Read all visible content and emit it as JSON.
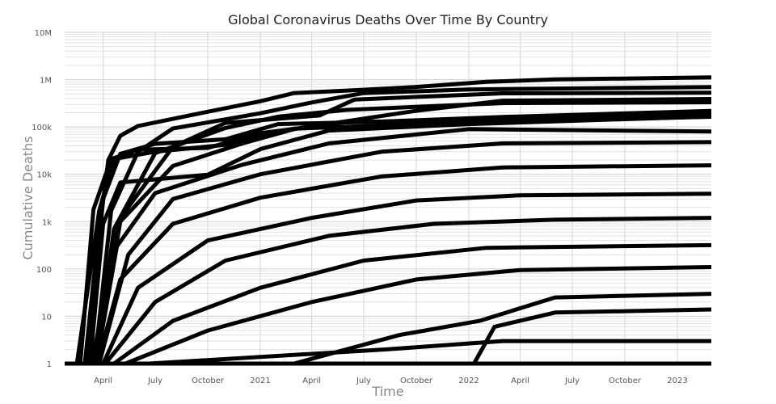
{
  "chart_data": {
    "type": "line",
    "title": "Global Coronavirus Deaths Over Time By Country",
    "xlabel": "Time",
    "ylabel": "Cumulative Deaths",
    "yscale": "log",
    "ylim": [
      1,
      10000000
    ],
    "xlim": [
      "2020-01-22",
      "2023-03-09"
    ],
    "grid": true,
    "legend": "none",
    "line_color": "#000000",
    "y_ticks": [
      {
        "value": 1,
        "label": "1"
      },
      {
        "value": 10,
        "label": "10"
      },
      {
        "value": 100,
        "label": "100"
      },
      {
        "value": 1000,
        "label": "1k"
      },
      {
        "value": 10000,
        "label": "10k"
      },
      {
        "value": 100000,
        "label": "100k"
      },
      {
        "value": 1000000,
        "label": "1M"
      },
      {
        "value": 10000000,
        "label": "10M"
      }
    ],
    "x_ticks": [
      {
        "date": "2020-04-01",
        "label": "April"
      },
      {
        "date": "2020-07-01",
        "label": "July"
      },
      {
        "date": "2020-10-01",
        "label": "October"
      },
      {
        "date": "2021-01-01",
        "label": "2021"
      },
      {
        "date": "2021-04-01",
        "label": "April"
      },
      {
        "date": "2021-07-01",
        "label": "July"
      },
      {
        "date": "2021-10-01",
        "label": "October"
      },
      {
        "date": "2022-01-01",
        "label": "2022"
      },
      {
        "date": "2022-04-01",
        "label": "April"
      },
      {
        "date": "2022-07-01",
        "label": "July"
      },
      {
        "date": "2022-10-01",
        "label": "October"
      },
      {
        "date": "2023-01-01",
        "label": "2023"
      }
    ],
    "series": [
      {
        "points": [
          [
            "2020-02-29",
            1
          ],
          [
            "2020-03-20",
            200
          ],
          [
            "2020-04-10",
            20000
          ],
          [
            "2020-05-01",
            65000
          ],
          [
            "2020-06-01",
            105000
          ],
          [
            "2020-10-01",
            210000
          ],
          [
            "2021-01-01",
            350000
          ],
          [
            "2021-03-01",
            520000
          ],
          [
            "2021-07-01",
            610000
          ],
          [
            "2021-10-01",
            700000
          ],
          [
            "2022-02-01",
            900000
          ],
          [
            "2022-06-01",
            1010000
          ],
          [
            "2023-03-09",
            1120000
          ]
        ]
      },
      {
        "points": [
          [
            "2020-03-17",
            1
          ],
          [
            "2020-04-15",
            1700
          ],
          [
            "2020-06-01",
            30000
          ],
          [
            "2020-08-01",
            93000
          ],
          [
            "2021-01-01",
            195000
          ],
          [
            "2021-04-01",
            330000
          ],
          [
            "2021-07-01",
            520000
          ],
          [
            "2022-01-01",
            620000
          ],
          [
            "2023-03-09",
            699000
          ]
        ]
      },
      {
        "points": [
          [
            "2020-03-12",
            1
          ],
          [
            "2020-05-01",
            1200
          ],
          [
            "2020-08-01",
            38000
          ],
          [
            "2020-11-01",
            122000
          ],
          [
            "2021-04-15",
            175000
          ],
          [
            "2021-06-15",
            380000
          ],
          [
            "2022-03-01",
            515000
          ],
          [
            "2023-03-09",
            531000
          ]
        ]
      },
      {
        "points": [
          [
            "2020-03-20",
            1
          ],
          [
            "2020-05-01",
            1000
          ],
          [
            "2020-08-01",
            15000
          ],
          [
            "2020-12-01",
            45000
          ],
          [
            "2021-03-01",
            90000
          ],
          [
            "2021-10-01",
            220000
          ],
          [
            "2022-03-01",
            360000
          ],
          [
            "2023-03-09",
            390000
          ]
        ]
      },
      {
        "points": [
          [
            "2020-03-19",
            1
          ],
          [
            "2020-04-20",
            700
          ],
          [
            "2020-07-01",
            28000
          ],
          [
            "2020-11-01",
            95000
          ],
          [
            "2021-02-01",
            165000
          ],
          [
            "2021-06-01",
            230000
          ],
          [
            "2022-03-01",
            320000
          ],
          [
            "2023-03-09",
            333000
          ]
        ]
      },
      {
        "points": [
          [
            "2020-03-05",
            1
          ],
          [
            "2020-04-01",
            3000
          ],
          [
            "2020-05-01",
            27000
          ],
          [
            "2020-07-01",
            44000
          ],
          [
            "2020-11-01",
            55000
          ],
          [
            "2021-02-01",
            115000
          ],
          [
            "2021-08-01",
            130000
          ],
          [
            "2022-03-01",
            163000
          ],
          [
            "2023-03-09",
            220000
          ]
        ]
      },
      {
        "points": [
          [
            "2020-02-21",
            1
          ],
          [
            "2020-03-15",
            1800
          ],
          [
            "2020-04-15",
            21000
          ],
          [
            "2020-06-01",
            33000
          ],
          [
            "2020-10-01",
            36000
          ],
          [
            "2021-01-01",
            74000
          ],
          [
            "2021-06-01",
            127000
          ],
          [
            "2022-01-01",
            140000
          ],
          [
            "2023-03-09",
            188000
          ]
        ]
      },
      {
        "points": [
          [
            "2020-03-09",
            1
          ],
          [
            "2020-04-01",
            900
          ],
          [
            "2020-05-01",
            6700
          ],
          [
            "2020-10-01",
            9800
          ],
          [
            "2021-01-01",
            34000
          ],
          [
            "2021-05-01",
            84000
          ],
          [
            "2022-01-01",
            115000
          ],
          [
            "2023-03-09",
            168000
          ]
        ]
      },
      {
        "points": [
          [
            "2020-02-15",
            1
          ],
          [
            "2020-03-25",
            1700
          ],
          [
            "2020-04-20",
            21000
          ],
          [
            "2020-07-01",
            30000
          ],
          [
            "2020-11-01",
            42000
          ],
          [
            "2021-03-01",
            92000
          ],
          [
            "2022-01-01",
            125000
          ],
          [
            "2023-03-09",
            165000
          ]
        ]
      },
      {
        "points": [
          [
            "2020-03-20",
            1
          ],
          [
            "2020-04-25",
            300
          ],
          [
            "2020-07-01",
            4000
          ],
          [
            "2020-12-01",
            16000
          ],
          [
            "2021-05-01",
            45000
          ],
          [
            "2022-01-01",
            90000
          ],
          [
            "2023-03-09",
            80000
          ]
        ]
      },
      {
        "points": [
          [
            "2020-03-25",
            1
          ],
          [
            "2020-05-15",
            200
          ],
          [
            "2020-08-01",
            3000
          ],
          [
            "2021-01-01",
            10000
          ],
          [
            "2021-08-01",
            30000
          ],
          [
            "2022-03-01",
            45000
          ],
          [
            "2023-03-09",
            48000
          ]
        ]
      },
      {
        "points": [
          [
            "2020-03-22",
            1
          ],
          [
            "2020-05-01",
            60
          ],
          [
            "2020-08-01",
            900
          ],
          [
            "2021-01-01",
            3200
          ],
          [
            "2021-08-01",
            9000
          ],
          [
            "2022-03-01",
            14000
          ],
          [
            "2023-03-09",
            15500
          ]
        ]
      },
      {
        "points": [
          [
            "2020-04-01",
            1
          ],
          [
            "2020-06-01",
            40
          ],
          [
            "2020-10-01",
            400
          ],
          [
            "2021-04-01",
            1200
          ],
          [
            "2021-10-01",
            2800
          ],
          [
            "2022-04-01",
            3600
          ],
          [
            "2023-03-09",
            3900
          ]
        ]
      },
      {
        "points": [
          [
            "2020-04-05",
            1
          ],
          [
            "2020-07-01",
            20
          ],
          [
            "2020-11-01",
            150
          ],
          [
            "2021-05-01",
            500
          ],
          [
            "2021-11-01",
            900
          ],
          [
            "2022-06-01",
            1100
          ],
          [
            "2023-03-09",
            1200
          ]
        ]
      },
      {
        "points": [
          [
            "2020-04-20",
            1
          ],
          [
            "2020-08-01",
            8
          ],
          [
            "2021-01-01",
            40
          ],
          [
            "2021-07-01",
            150
          ],
          [
            "2022-02-01",
            280
          ],
          [
            "2023-03-09",
            320
          ]
        ]
      },
      {
        "points": [
          [
            "2020-05-10",
            1
          ],
          [
            "2020-10-01",
            5
          ],
          [
            "2021-04-01",
            20
          ],
          [
            "2021-10-01",
            60
          ],
          [
            "2022-04-01",
            95
          ],
          [
            "2023-03-09",
            110
          ]
        ]
      },
      {
        "points": [
          [
            "2021-03-01",
            1
          ],
          [
            "2021-09-01",
            4
          ],
          [
            "2022-01-20",
            8
          ],
          [
            "2022-06-01",
            25
          ],
          [
            "2023-03-09",
            30
          ]
        ]
      },
      {
        "points": [
          [
            "2022-01-10",
            1
          ],
          [
            "2022-02-15",
            6
          ],
          [
            "2022-06-01",
            12
          ],
          [
            "2023-03-09",
            14
          ]
        ]
      },
      {
        "points": [
          [
            "2020-06-20",
            1
          ],
          [
            "2021-08-10",
            2
          ],
          [
            "2022-03-01",
            3
          ],
          [
            "2023-03-09",
            3
          ]
        ]
      },
      {
        "points": [
          [
            "2020-01-22",
            1
          ],
          [
            "2023-03-09",
            1
          ]
        ]
      }
    ]
  }
}
